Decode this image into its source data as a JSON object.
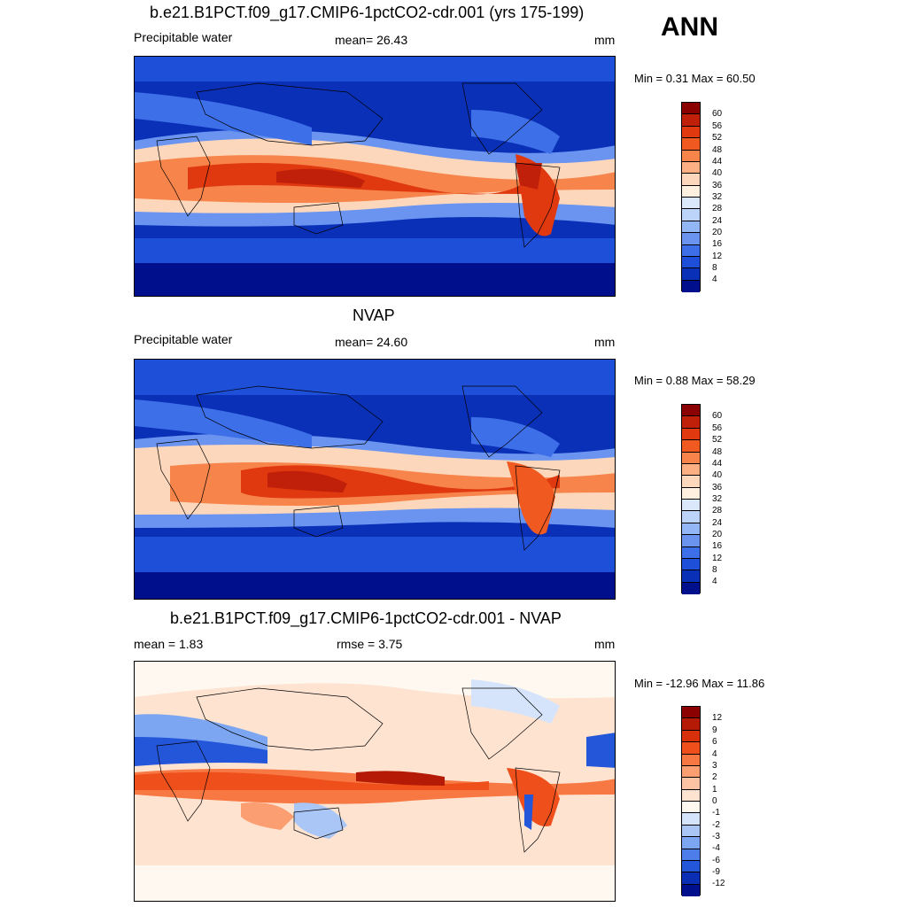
{
  "season": "ANN",
  "panels": [
    {
      "title": "b.e21.B1PCT.f09_g17.CMIP6-1pctCO2-cdr.001 (yrs 175-199)",
      "left_label": "Precipitable water",
      "center_label": "mean=  26.43",
      "right_label": "mm",
      "range_label": "Min =   0.31 Max =  60.50",
      "colorbar_ticks": [
        "60",
        "56",
        "52",
        "48",
        "44",
        "40",
        "36",
        "32",
        "28",
        "24",
        "20",
        "16",
        "12",
        "8",
        "4"
      ],
      "colors": [
        "#8b0000",
        "#c0200a",
        "#e0380f",
        "#f05a20",
        "#f7844a",
        "#fbaf82",
        "#fdd7bb",
        "#fff0e0",
        "#dbe8fb",
        "#bcd3fa",
        "#93b6f6",
        "#6a94f0",
        "#3d6fe8",
        "#1e4fd9",
        "#0a30b8",
        "#000f8c"
      ]
    },
    {
      "title": "NVAP",
      "left_label": "Precipitable water",
      "center_label": "mean=  24.60",
      "right_label": "mm",
      "range_label": "Min =   0.88 Max =  58.29",
      "colorbar_ticks": [
        "60",
        "56",
        "52",
        "48",
        "44",
        "40",
        "36",
        "32",
        "28",
        "24",
        "20",
        "16",
        "12",
        "8",
        "4"
      ],
      "colors": [
        "#8b0000",
        "#c0200a",
        "#e0380f",
        "#f05a20",
        "#f7844a",
        "#fbaf82",
        "#fdd7bb",
        "#fff0e0",
        "#dbe8fb",
        "#bcd3fa",
        "#93b6f6",
        "#6a94f0",
        "#3d6fe8",
        "#1e4fd9",
        "#0a30b8",
        "#000f8c"
      ]
    },
    {
      "title": "b.e21.B1PCT.f09_g17.CMIP6-1pctCO2-cdr.001 - NVAP",
      "left_label": "mean =   1.83",
      "center_label": "rmse =   3.75",
      "right_label": "mm",
      "range_label": "Min = -12.96 Max =  11.86",
      "colorbar_ticks": [
        "12",
        "9",
        "6",
        "4",
        "3",
        "2",
        "1",
        "0",
        "-1",
        "-2",
        "-3",
        "-4",
        "-6",
        "-9",
        "-12"
      ],
      "colors": [
        "#8b0000",
        "#b51a06",
        "#d9300c",
        "#ef4f1b",
        "#f77843",
        "#fb9f73",
        "#fdc3a3",
        "#fee3d1",
        "#fff8f0",
        "#d6e4fb",
        "#aac6f7",
        "#7da6f2",
        "#4d7de9",
        "#2456da",
        "#0a2fb5",
        "#000f8c"
      ]
    }
  ]
}
